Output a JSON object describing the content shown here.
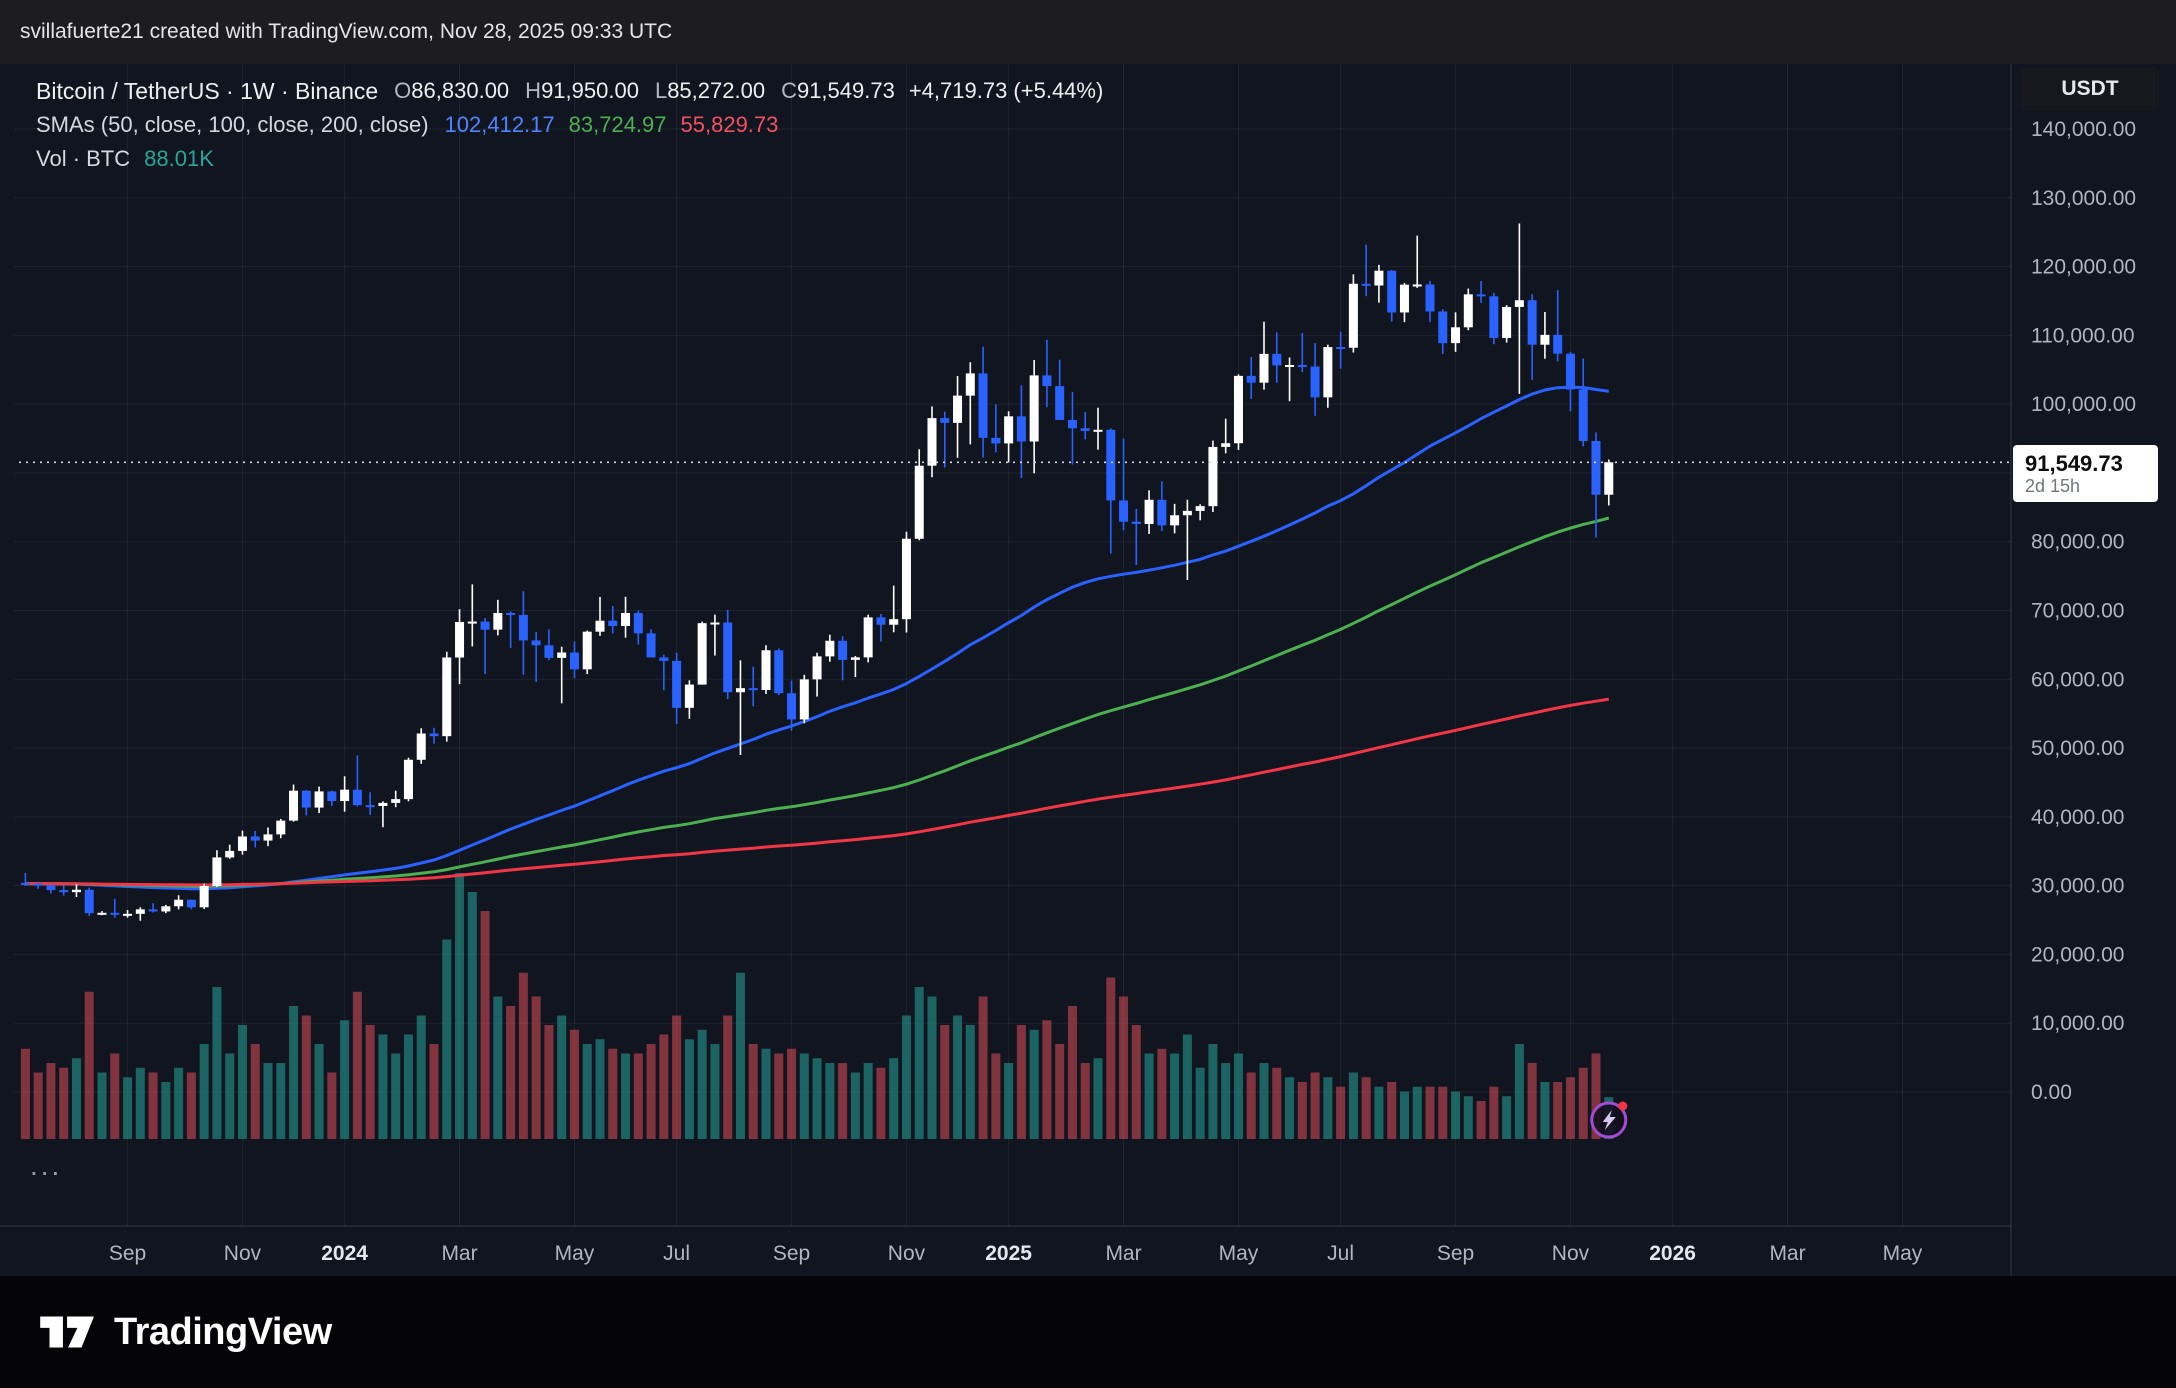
{
  "attribution": {
    "text": "svillafuerte21 created with TradingView.com, Nov 28, 2025 09:33 UTC"
  },
  "legend": {
    "title": "Bitcoin / TetherUS · 1W · Binance",
    "open_label": "O",
    "open": "86,830.00",
    "high_label": "H",
    "high": "91,950.00",
    "low_label": "L",
    "low": "85,272.00",
    "close_label": "C",
    "close": "91,549.73",
    "change": "+4,719.73 (+5.44%)",
    "sma_label": "SMAs (50, close, 100, close, 200, close)",
    "sma50": "102,412.17",
    "sma100": "83,724.97",
    "sma200": "55,829.73",
    "vol_label": "Vol · BTC",
    "vol_value": "88.01K"
  },
  "axis": {
    "currency_button": "USDT",
    "price_label": "91,549.73",
    "countdown": "2d 15h"
  },
  "bottom": {
    "brand": "TradingView"
  },
  "misc": {
    "ellipsis": "..."
  },
  "colors": {
    "up": "#ffffff",
    "down": "#2962ff",
    "sma50": "#2962ff",
    "sma100": "#4caf50",
    "sma200": "#f23645",
    "vol_up": "rgba(38,166,154,0.55)",
    "vol_down": "rgba(242,84,91,0.5)",
    "grid": "rgba(152,166,199,0.10)",
    "separator": "rgba(170,180,200,0.22)",
    "axis_text": "#b2b5be",
    "year_text": "#e4e7ee",
    "price_line": "#d5d8e0",
    "sticker_ring": "#a24bd8",
    "sticker_dot": "#f23645"
  },
  "chart_data": {
    "type": "candlestick+volume",
    "title": "Bitcoin / TetherUS · 1W · Binance",
    "interval": "1W",
    "exchange": "Binance",
    "current_price": 91549.73,
    "ohlc_current": {
      "open": 86830,
      "high": 91950,
      "low": 85272,
      "close": 91549.73,
      "change": 4719.73,
      "change_pct": 5.44
    },
    "sma_periods": [
      50,
      100,
      200
    ],
    "sma_last": [
      102412.17,
      83724.97,
      55829.73
    ],
    "volume_current_label": "88.01K",
    "ylim": [
      0,
      140000
    ],
    "yticks": [
      0,
      10000,
      20000,
      30000,
      40000,
      50000,
      60000,
      70000,
      80000,
      90000,
      100000,
      110000,
      120000,
      130000,
      140000
    ],
    "total_slots": 156,
    "xticks": [
      {
        "label": "Sep",
        "i": 8,
        "year": false
      },
      {
        "label": "Nov",
        "i": 17,
        "year": false
      },
      {
        "label": "2024",
        "i": 25,
        "year": true
      },
      {
        "label": "Mar",
        "i": 34,
        "year": false
      },
      {
        "label": "May",
        "i": 43,
        "year": false
      },
      {
        "label": "Jul",
        "i": 51,
        "year": false
      },
      {
        "label": "Sep",
        "i": 60,
        "year": false
      },
      {
        "label": "Nov",
        "i": 69,
        "year": false
      },
      {
        "label": "2025",
        "i": 77,
        "year": true
      },
      {
        "label": "Mar",
        "i": 86,
        "year": false
      },
      {
        "label": "May",
        "i": 95,
        "year": false
      },
      {
        "label": "Jul",
        "i": 103,
        "year": false
      },
      {
        "label": "Sep",
        "i": 112,
        "year": false
      },
      {
        "label": "Nov",
        "i": 121,
        "year": false
      },
      {
        "label": "2026",
        "i": 129,
        "year": true
      },
      {
        "label": "Mar",
        "i": 138,
        "year": false
      },
      {
        "label": "May",
        "i": 147,
        "year": false
      }
    ],
    "candle_fields": [
      "open",
      "high",
      "low",
      "close",
      "volume_k_btc"
    ],
    "candles": [
      [
        30400,
        31850,
        29950,
        30290,
        190
      ],
      [
        30290,
        30340,
        29550,
        30080,
        140
      ],
      [
        30080,
        30100,
        28860,
        29350,
        160
      ],
      [
        29350,
        30050,
        28550,
        29050,
        150
      ],
      [
        29050,
        30200,
        28350,
        29400,
        170
      ],
      [
        29400,
        29700,
        25600,
        26000,
        310
      ],
      [
        26000,
        26300,
        25700,
        26050,
        140
      ],
      [
        26050,
        28100,
        25350,
        25850,
        180
      ],
      [
        25850,
        26450,
        25350,
        25900,
        130
      ],
      [
        25900,
        26850,
        24900,
        26550,
        150
      ],
      [
        26550,
        27450,
        26100,
        26250,
        140
      ],
      [
        26250,
        27200,
        26000,
        27000,
        120
      ],
      [
        27000,
        28600,
        26550,
        27950,
        150
      ],
      [
        27950,
        27990,
        26550,
        26850,
        140
      ],
      [
        26850,
        30300,
        26600,
        29950,
        200
      ],
      [
        29950,
        35150,
        29800,
        34100,
        320
      ],
      [
        34100,
        35950,
        33900,
        35050,
        180
      ],
      [
        35050,
        38000,
        34500,
        37150,
        240
      ],
      [
        37150,
        37950,
        35550,
        36550,
        200
      ],
      [
        36550,
        38450,
        35750,
        37450,
        160
      ],
      [
        37450,
        39700,
        36900,
        39450,
        160
      ],
      [
        39450,
        44700,
        39300,
        43800,
        280
      ],
      [
        43800,
        43900,
        40200,
        41350,
        260
      ],
      [
        41350,
        44400,
        40550,
        43700,
        200
      ],
      [
        43700,
        43800,
        41600,
        42300,
        140
      ],
      [
        42300,
        45900,
        40750,
        43950,
        250
      ],
      [
        43950,
        48950,
        41500,
        41700,
        310
      ],
      [
        41700,
        43580,
        40280,
        41580,
        240
      ],
      [
        41580,
        42250,
        38500,
        42030,
        220
      ],
      [
        42030,
        43800,
        41400,
        42580,
        180
      ],
      [
        42580,
        48600,
        42270,
        48300,
        220
      ],
      [
        48300,
        52880,
        47710,
        52120,
        260
      ],
      [
        52120,
        52950,
        50630,
        51730,
        200
      ],
      [
        51730,
        64000,
        50930,
        63170,
        420
      ],
      [
        63170,
        70180,
        59300,
        68330,
        560
      ],
      [
        68330,
        73800,
        64780,
        68390,
        520
      ],
      [
        68390,
        68900,
        60770,
        67210,
        480
      ],
      [
        67210,
        71550,
        66380,
        69640,
        300
      ],
      [
        69640,
        69870,
        64560,
        69360,
        280
      ],
      [
        69360,
        72800,
        60660,
        65650,
        350
      ],
      [
        65650,
        66880,
        59600,
        64940,
        300
      ],
      [
        64940,
        67230,
        62780,
        63110,
        240
      ],
      [
        63110,
        64730,
        56500,
        63890,
        260
      ],
      [
        63890,
        65500,
        60170,
        61450,
        230
      ],
      [
        61450,
        67080,
        60750,
        66920,
        200
      ],
      [
        66920,
        71970,
        66310,
        68520,
        210
      ],
      [
        68520,
        70650,
        66670,
        67750,
        190
      ],
      [
        67750,
        71990,
        66050,
        69640,
        180
      ],
      [
        69640,
        69990,
        65050,
        66680,
        180
      ],
      [
        66680,
        67290,
        63380,
        63180,
        200
      ],
      [
        63180,
        63580,
        58400,
        62680,
        220
      ],
      [
        62680,
        63860,
        53500,
        55850,
        260
      ],
      [
        55850,
        59850,
        54260,
        59230,
        210
      ],
      [
        59230,
        68380,
        59220,
        68160,
        230
      ],
      [
        68160,
        69400,
        63450,
        68250,
        200
      ],
      [
        68250,
        70080,
        57120,
        58120,
        260
      ],
      [
        58120,
        62750,
        49000,
        58710,
        350
      ],
      [
        58710,
        61850,
        56070,
        58440,
        200
      ],
      [
        58440,
        64950,
        57870,
        64220,
        190
      ],
      [
        64220,
        64480,
        57700,
        57970,
        180
      ],
      [
        57970,
        59830,
        52530,
        54160,
        190
      ],
      [
        54160,
        60650,
        53600,
        59990,
        180
      ],
      [
        59990,
        63850,
        57490,
        63330,
        170
      ],
      [
        63330,
        66480,
        62550,
        65600,
        160
      ],
      [
        65600,
        66250,
        59850,
        62820,
        160
      ],
      [
        62820,
        63380,
        60320,
        63190,
        140
      ],
      [
        63190,
        69400,
        62450,
        69000,
        160
      ],
      [
        69000,
        69500,
        65470,
        67930,
        150
      ],
      [
        67930,
        73620,
        66830,
        68740,
        170
      ],
      [
        68740,
        81450,
        66800,
        80430,
        260
      ],
      [
        80430,
        93450,
        80220,
        91050,
        320
      ],
      [
        91050,
        99660,
        89380,
        97970,
        300
      ],
      [
        97970,
        98900,
        90790,
        97280,
        240
      ],
      [
        97280,
        104080,
        92200,
        101240,
        260
      ],
      [
        101240,
        106100,
        94150,
        104470,
        240
      ],
      [
        104470,
        108360,
        92230,
        95100,
        300
      ],
      [
        95100,
        99960,
        93000,
        94290,
        180
      ],
      [
        94290,
        98970,
        91530,
        98230,
        160
      ],
      [
        98230,
        102720,
        89260,
        94570,
        240
      ],
      [
        94570,
        106420,
        89950,
        104180,
        230
      ],
      [
        104180,
        109360,
        99550,
        102620,
        250
      ],
      [
        102620,
        106460,
        97780,
        97700,
        200
      ],
      [
        97700,
        101780,
        91230,
        96500,
        280
      ],
      [
        96500,
        98850,
        94880,
        96120,
        160
      ],
      [
        96120,
        99475,
        93380,
        96270,
        170
      ],
      [
        96270,
        96500,
        78260,
        86000,
        340
      ],
      [
        86000,
        95000,
        81650,
        82900,
        300
      ],
      [
        82900,
        84770,
        76610,
        82580,
        240
      ],
      [
        82580,
        87470,
        81130,
        86090,
        180
      ],
      [
        86090,
        88770,
        81560,
        82380,
        190
      ],
      [
        82380,
        85500,
        81220,
        83850,
        180
      ],
      [
        83850,
        86100,
        74430,
        84480,
        220
      ],
      [
        84480,
        85440,
        83110,
        85170,
        150
      ],
      [
        85170,
        94700,
        84320,
        93780,
        200
      ],
      [
        93780,
        97890,
        92850,
        94320,
        160
      ],
      [
        94320,
        104330,
        93350,
        104110,
        180
      ],
      [
        104110,
        106850,
        100750,
        103120,
        140
      ],
      [
        103120,
        111980,
        102110,
        107310,
        160
      ],
      [
        107310,
        110440,
        103110,
        105640,
        150
      ],
      [
        105640,
        106780,
        100430,
        105690,
        130
      ],
      [
        105690,
        110350,
        104650,
        105470,
        120
      ],
      [
        105470,
        108880,
        98300,
        100990,
        140
      ],
      [
        100990,
        108650,
        99470,
        108300,
        130
      ],
      [
        108300,
        110530,
        105150,
        108200,
        110
      ],
      [
        108200,
        118860,
        107500,
        117500,
        140
      ],
      [
        117500,
        123200,
        115700,
        117250,
        130
      ],
      [
        117250,
        120250,
        114750,
        119400,
        110
      ],
      [
        119400,
        119500,
        112000,
        113330,
        120
      ],
      [
        113330,
        117600,
        111920,
        117370,
        100
      ],
      [
        117370,
        124500,
        116900,
        117400,
        110
      ],
      [
        117400,
        117900,
        111900,
        113470,
        110
      ],
      [
        113470,
        113800,
        107270,
        108870,
        110
      ],
      [
        108870,
        113350,
        107600,
        111170,
        100
      ],
      [
        111170,
        116800,
        110750,
        115960,
        90
      ],
      [
        115960,
        117900,
        114730,
        115680,
        80
      ],
      [
        115680,
        116200,
        108720,
        109620,
        110
      ],
      [
        109620,
        114400,
        108950,
        114130,
        90
      ],
      [
        114130,
        126270,
        101500,
        115110,
        200
      ],
      [
        115110,
        116000,
        103530,
        108640,
        160
      ],
      [
        108640,
        113400,
        106600,
        110070,
        120
      ],
      [
        110070,
        116550,
        106210,
        107340,
        120
      ],
      [
        107340,
        107600,
        98950,
        102130,
        130
      ],
      [
        102130,
        106650,
        93860,
        94640,
        150
      ],
      [
        94640,
        95900,
        80600,
        86830,
        180
      ],
      [
        86830,
        91950,
        85272,
        91549.73,
        88.01
      ]
    ]
  }
}
